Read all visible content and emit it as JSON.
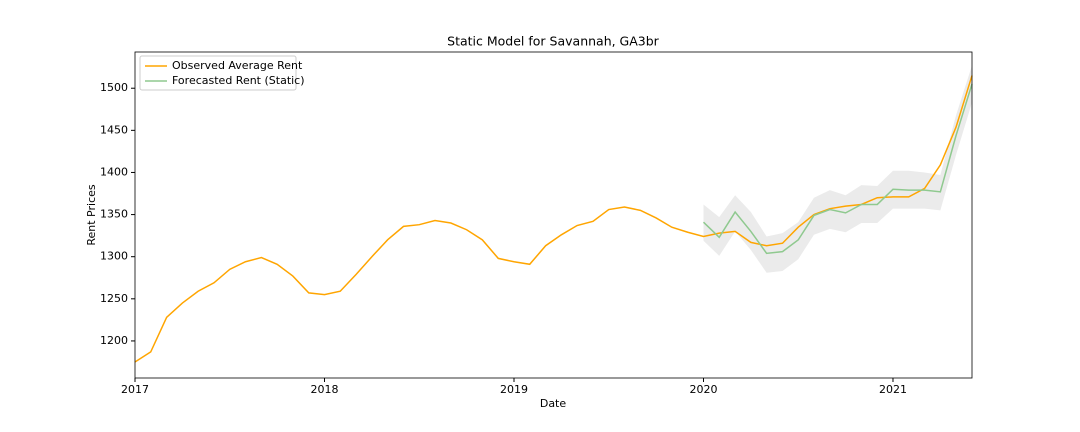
{
  "chart_data": {
    "type": "line",
    "title": "Static Model for Savannah, GA3br",
    "x_label": "Date",
    "y_label": "Rent Prices",
    "x": [
      2017,
      2017.083,
      2017.167,
      2017.25,
      2017.333,
      2017.417,
      2017.5,
      2017.583,
      2017.667,
      2017.75,
      2017.833,
      2017.917,
      2018,
      2018.083,
      2018.167,
      2018.25,
      2018.333,
      2018.417,
      2018.5,
      2018.583,
      2018.667,
      2018.75,
      2018.833,
      2018.917,
      2019,
      2019.083,
      2019.167,
      2019.25,
      2019.333,
      2019.417,
      2019.5,
      2019.583,
      2019.667,
      2019.75,
      2019.833,
      2019.917,
      2020,
      2020.083,
      2020.167,
      2020.25,
      2020.333,
      2020.417,
      2020.5,
      2020.583,
      2020.667,
      2020.75,
      2020.833,
      2020.917,
      2021,
      2021.083,
      2021.167,
      2021.25,
      2021.333,
      2021.417
    ],
    "series": [
      {
        "name": "Observed Average Rent",
        "color": "#ffa500",
        "values": [
          1175,
          1187,
          1228,
          1245,
          1259,
          1269,
          1285,
          1294,
          1299,
          1291,
          1277,
          1257,
          1255,
          1259,
          1279,
          1300,
          1320,
          1336,
          1338,
          1343,
          1340,
          1332,
          1320,
          1298,
          1294,
          1291,
          1313,
          1326,
          1337,
          1342,
          1356,
          1359,
          1355,
          1346,
          1335,
          1329,
          1324,
          1328,
          1330,
          1317,
          1313,
          1316,
          1335,
          1350,
          1357,
          1360,
          1362,
          1370,
          1371,
          1371,
          1381,
          1409,
          1454,
          1515
        ]
      },
      {
        "name": "Forecasted Rent (Static)",
        "color": "#8fc98f",
        "band_color": "#ebebeb",
        "values": [
          null,
          null,
          null,
          null,
          null,
          null,
          null,
          null,
          null,
          null,
          null,
          null,
          null,
          null,
          null,
          null,
          null,
          null,
          null,
          null,
          null,
          null,
          null,
          null,
          null,
          null,
          null,
          null,
          null,
          null,
          null,
          null,
          null,
          null,
          null,
          null,
          1341,
          1323,
          1353,
          1330,
          1304,
          1306,
          1320,
          1349,
          1356,
          1352,
          1362,
          1362,
          1380,
          1379,
          1379,
          1377,
          1444,
          1505
        ],
        "upper": [
          null,
          null,
          null,
          null,
          null,
          null,
          null,
          null,
          null,
          null,
          null,
          null,
          null,
          null,
          null,
          null,
          null,
          null,
          null,
          null,
          null,
          null,
          null,
          null,
          null,
          null,
          null,
          null,
          null,
          null,
          null,
          null,
          null,
          null,
          null,
          null,
          1362,
          1347,
          1373,
          1353,
          1324,
          1328,
          1341,
          1370,
          1379,
          1373,
          1385,
          1384,
          1402,
          1402,
          1400,
          1397,
          1468,
          1527
        ],
        "lower": [
          null,
          null,
          null,
          null,
          null,
          null,
          null,
          null,
          null,
          null,
          null,
          null,
          null,
          null,
          null,
          null,
          null,
          null,
          null,
          null,
          null,
          null,
          null,
          null,
          null,
          null,
          null,
          null,
          null,
          null,
          null,
          null,
          null,
          null,
          null,
          null,
          1319,
          1301,
          1330,
          1308,
          1281,
          1283,
          1297,
          1326,
          1333,
          1329,
          1340,
          1340,
          1357,
          1357,
          1357,
          1355,
          1421,
          1483
        ]
      }
    ],
    "xlim": [
      2017,
      2021.417
    ],
    "xticks": [
      2017,
      2018,
      2019,
      2020,
      2021
    ],
    "ylim": [
      1156,
      1543
    ],
    "yticks": [
      1200,
      1250,
      1300,
      1350,
      1400,
      1450,
      1500
    ],
    "grid": false,
    "legend": "upper left"
  }
}
